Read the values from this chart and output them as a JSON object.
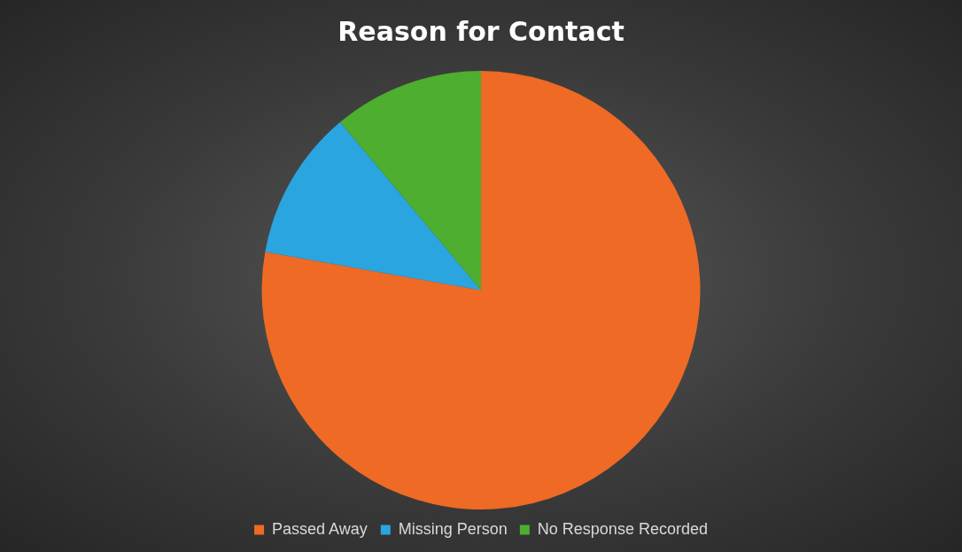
{
  "chart_data": {
    "type": "pie",
    "title": "Reason for Contact",
    "categories": [
      "Passed Away",
      "Missing Person",
      "No Response Recorded"
    ],
    "values": [
      77.8,
      11.1,
      11.1
    ],
    "colors": [
      "#ee6a25",
      "#2aa5df",
      "#4dae2f"
    ],
    "legend": "bottom"
  }
}
